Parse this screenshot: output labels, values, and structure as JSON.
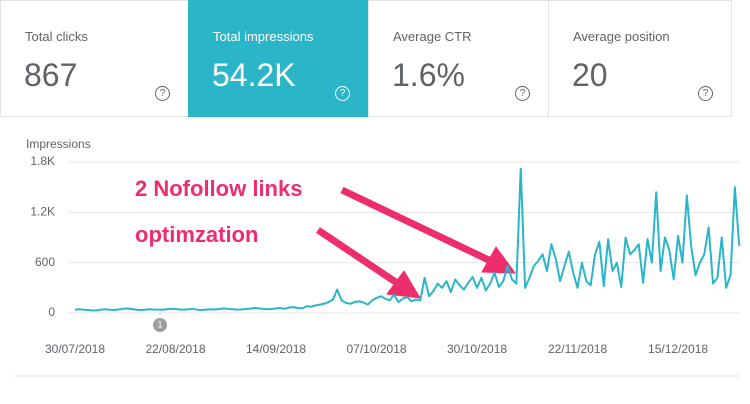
{
  "cards": [
    {
      "label": "Total clicks",
      "value": "867",
      "active": false
    },
    {
      "label": "Total impressions",
      "value": "54.2K",
      "active": true
    },
    {
      "label": "Average CTR",
      "value": "1.6%",
      "active": false
    },
    {
      "label": "Average position",
      "value": "20",
      "active": false
    }
  ],
  "help_icon": "?",
  "chart_data": {
    "type": "line",
    "y_label": "Impressions",
    "annotation_marker": "1",
    "overlay_text": [
      "2 Nofollow links",
      "optimzation"
    ],
    "x": [
      "30/07/2018",
      "31/07/2018",
      "01/08/2018",
      "02/08/2018",
      "03/08/2018",
      "04/08/2018",
      "05/08/2018",
      "06/08/2018",
      "07/08/2018",
      "08/08/2018",
      "09/08/2018",
      "10/08/2018",
      "11/08/2018",
      "12/08/2018",
      "13/08/2018",
      "14/08/2018",
      "15/08/2018",
      "16/08/2018",
      "17/08/2018",
      "18/08/2018",
      "19/08/2018",
      "20/08/2018",
      "21/08/2018",
      "22/08/2018",
      "23/08/2018",
      "24/08/2018",
      "25/08/2018",
      "26/08/2018",
      "27/08/2018",
      "28/08/2018",
      "29/08/2018",
      "30/08/2018",
      "31/08/2018",
      "01/09/2018",
      "02/09/2018",
      "03/09/2018",
      "04/09/2018",
      "05/09/2018",
      "06/09/2018",
      "07/09/2018",
      "08/09/2018",
      "09/09/2018",
      "10/09/2018",
      "11/09/2018",
      "12/09/2018",
      "13/09/2018",
      "14/09/2018",
      "15/09/2018",
      "16/09/2018",
      "17/09/2018",
      "18/09/2018",
      "19/09/2018",
      "20/09/2018",
      "21/09/2018",
      "22/09/2018",
      "23/09/2018",
      "24/09/2018",
      "25/09/2018",
      "26/09/2018",
      "27/09/2018",
      "28/09/2018",
      "29/09/2018",
      "30/09/2018",
      "01/10/2018",
      "02/10/2018",
      "03/10/2018",
      "04/10/2018",
      "05/10/2018",
      "06/10/2018",
      "07/10/2018",
      "08/10/2018",
      "09/10/2018",
      "10/10/2018",
      "11/10/2018",
      "12/10/2018",
      "13/10/2018",
      "14/10/2018",
      "15/10/2018",
      "16/10/2018",
      "17/10/2018",
      "18/10/2018",
      "19/10/2018",
      "20/10/2018",
      "21/10/2018",
      "22/10/2018",
      "23/10/2018",
      "24/10/2018",
      "25/10/2018",
      "26/10/2018",
      "27/10/2018",
      "28/10/2018",
      "29/10/2018",
      "30/10/2018",
      "31/10/2018",
      "01/11/2018",
      "02/11/2018",
      "03/11/2018",
      "04/11/2018",
      "05/11/2018",
      "06/11/2018",
      "07/11/2018",
      "08/11/2018",
      "09/11/2018",
      "10/11/2018",
      "11/11/2018",
      "12/11/2018",
      "13/11/2018",
      "14/11/2018",
      "15/11/2018",
      "16/11/2018",
      "17/11/2018",
      "18/11/2018",
      "19/11/2018",
      "20/11/2018",
      "21/11/2018",
      "22/11/2018",
      "23/11/2018",
      "24/11/2018",
      "25/11/2018",
      "26/11/2018",
      "27/11/2018",
      "28/11/2018",
      "29/11/2018",
      "30/11/2018",
      "01/12/2018",
      "02/12/2018",
      "03/12/2018",
      "04/12/2018",
      "05/12/2018",
      "06/12/2018",
      "07/12/2018",
      "08/12/2018",
      "09/12/2018",
      "10/12/2018",
      "11/12/2018",
      "12/12/2018",
      "13/12/2018",
      "14/12/2018",
      "15/12/2018",
      "16/12/2018",
      "17/12/2018",
      "18/12/2018",
      "19/12/2018",
      "20/12/2018",
      "21/12/2018",
      "22/12/2018",
      "23/12/2018",
      "24/12/2018",
      "25/12/2018",
      "26/12/2018",
      "27/12/2018",
      "28/12/2018",
      "29/12/2018"
    ],
    "series": [
      {
        "name": "Impressions",
        "color": "#2bb5c8",
        "values": [
          40,
          45,
          38,
          35,
          30,
          32,
          40,
          45,
          38,
          36,
          42,
          50,
          55,
          48,
          40,
          35,
          38,
          45,
          42,
          40,
          38,
          45,
          50,
          48,
          42,
          40,
          45,
          50,
          38,
          36,
          40,
          45,
          42,
          48,
          55,
          50,
          45,
          40,
          42,
          48,
          52,
          60,
          55,
          50,
          45,
          48,
          55,
          60,
          50,
          65,
          70,
          60,
          55,
          80,
          75,
          90,
          100,
          110,
          130,
          160,
          280,
          150,
          120,
          110,
          130,
          140,
          125,
          100,
          150,
          180,
          200,
          170,
          150,
          220,
          130,
          170,
          190,
          140,
          160,
          150,
          420,
          200,
          260,
          350,
          300,
          380,
          250,
          400,
          330,
          280,
          360,
          430,
          300,
          420,
          270,
          350,
          480,
          310,
          380,
          560,
          400,
          350,
          1720,
          300,
          420,
          560,
          620,
          700,
          500,
          820,
          650,
          380,
          560,
          730,
          480,
          300,
          600,
          380,
          330,
          700,
          850,
          320,
          880,
          500,
          600,
          310,
          900,
          700,
          750,
          820,
          360,
          880,
          600,
          1440,
          500,
          900,
          750,
          400,
          920,
          600,
          1400,
          800,
          450,
          600,
          700,
          1020,
          350,
          420,
          900,
          300,
          450,
          1500,
          800
        ]
      }
    ],
    "ylim": [
      0,
      1800
    ],
    "yticks": [
      0,
      600,
      {
        "value": 1200,
        "label": "1.2K"
      },
      {
        "value": 1800,
        "label": "1.8K"
      }
    ],
    "xticks": [
      "30/07/2018",
      "22/08/2018",
      "14/09/2018",
      "07/10/2018",
      "30/10/2018",
      "22/11/2018",
      "15/12/2018"
    ],
    "grid": true
  }
}
